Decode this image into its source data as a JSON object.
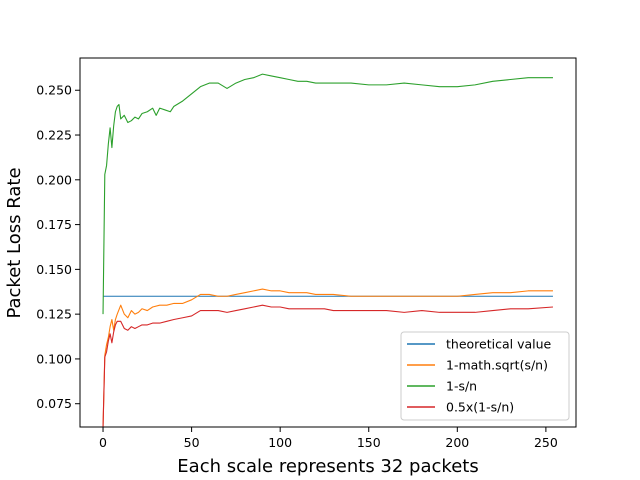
{
  "chart_data": {
    "type": "line",
    "xlabel": "Each scale represents 32 packets",
    "ylabel": "Packet Loss Rate",
    "xlim": [
      -13,
      267
    ],
    "ylim": [
      0.062,
      0.268
    ],
    "xticks": [
      0,
      50,
      100,
      150,
      200,
      250
    ],
    "yticks": [
      0.075,
      0.1,
      0.125,
      0.15,
      0.175,
      0.2,
      0.225,
      0.25
    ],
    "xtick_labels": [
      "0",
      "50",
      "100",
      "150",
      "200",
      "250"
    ],
    "ytick_labels": [
      "0.075",
      "0.100",
      "0.125",
      "0.150",
      "0.175",
      "0.200",
      "0.225",
      "0.250"
    ],
    "grid": false,
    "legend_position": "lower-right",
    "series": [
      {
        "name": "theoretical value",
        "color": "#1f77b4",
        "x": [
          0,
          254
        ],
        "y": [
          0.135,
          0.135
        ]
      },
      {
        "name": "1-math.sqrt(s/n)",
        "color": "#ff7f0e",
        "x": [
          0,
          1,
          2,
          3,
          4,
          5,
          6,
          7,
          8,
          10,
          12,
          14,
          16,
          18,
          20,
          22,
          25,
          28,
          32,
          36,
          40,
          45,
          50,
          55,
          60,
          65,
          70,
          75,
          80,
          85,
          90,
          95,
          100,
          105,
          110,
          115,
          120,
          125,
          130,
          140,
          150,
          160,
          170,
          180,
          190,
          200,
          210,
          220,
          230,
          240,
          254
        ],
        "y": [
          0.062,
          0.102,
          0.108,
          0.112,
          0.118,
          0.122,
          0.116,
          0.122,
          0.125,
          0.13,
          0.125,
          0.123,
          0.127,
          0.125,
          0.126,
          0.128,
          0.127,
          0.129,
          0.13,
          0.13,
          0.131,
          0.131,
          0.133,
          0.136,
          0.136,
          0.135,
          0.135,
          0.136,
          0.137,
          0.138,
          0.139,
          0.138,
          0.138,
          0.137,
          0.137,
          0.137,
          0.136,
          0.136,
          0.136,
          0.135,
          0.135,
          0.135,
          0.135,
          0.135,
          0.135,
          0.135,
          0.136,
          0.137,
          0.137,
          0.138,
          0.138
        ]
      },
      {
        "name": "1-s/n",
        "color": "#2ca02c",
        "x": [
          0,
          1,
          2,
          3,
          4,
          5,
          6,
          7,
          8,
          9,
          10,
          12,
          14,
          16,
          18,
          20,
          22,
          25,
          28,
          30,
          32,
          35,
          38,
          40,
          45,
          50,
          55,
          60,
          65,
          70,
          75,
          80,
          85,
          90,
          95,
          100,
          105,
          110,
          115,
          120,
          125,
          130,
          140,
          150,
          160,
          170,
          180,
          190,
          200,
          210,
          220,
          230,
          240,
          254
        ],
        "y": [
          0.125,
          0.203,
          0.208,
          0.22,
          0.229,
          0.218,
          0.23,
          0.238,
          0.241,
          0.242,
          0.234,
          0.236,
          0.232,
          0.233,
          0.235,
          0.234,
          0.237,
          0.238,
          0.24,
          0.236,
          0.24,
          0.239,
          0.238,
          0.241,
          0.244,
          0.248,
          0.252,
          0.254,
          0.254,
          0.251,
          0.254,
          0.256,
          0.257,
          0.259,
          0.258,
          0.257,
          0.256,
          0.255,
          0.255,
          0.254,
          0.254,
          0.254,
          0.254,
          0.253,
          0.253,
          0.254,
          0.253,
          0.252,
          0.252,
          0.253,
          0.255,
          0.256,
          0.257,
          0.257
        ]
      },
      {
        "name": "0.5x(1-s/n)",
        "color": "#d62728",
        "x": [
          0,
          1,
          2,
          3,
          4,
          5,
          6,
          7,
          8,
          10,
          12,
          14,
          16,
          18,
          20,
          22,
          25,
          28,
          32,
          36,
          40,
          45,
          50,
          55,
          60,
          65,
          70,
          75,
          80,
          85,
          90,
          95,
          100,
          105,
          110,
          115,
          120,
          125,
          130,
          140,
          150,
          160,
          170,
          180,
          190,
          200,
          210,
          220,
          230,
          240,
          254
        ],
        "y": [
          0.062,
          0.101,
          0.104,
          0.11,
          0.114,
          0.109,
          0.115,
          0.119,
          0.121,
          0.121,
          0.117,
          0.116,
          0.118,
          0.117,
          0.118,
          0.119,
          0.119,
          0.12,
          0.12,
          0.121,
          0.122,
          0.123,
          0.124,
          0.127,
          0.127,
          0.127,
          0.126,
          0.127,
          0.128,
          0.129,
          0.13,
          0.129,
          0.129,
          0.128,
          0.128,
          0.128,
          0.128,
          0.128,
          0.127,
          0.127,
          0.127,
          0.127,
          0.126,
          0.127,
          0.126,
          0.126,
          0.126,
          0.127,
          0.128,
          0.128,
          0.129
        ]
      }
    ]
  }
}
